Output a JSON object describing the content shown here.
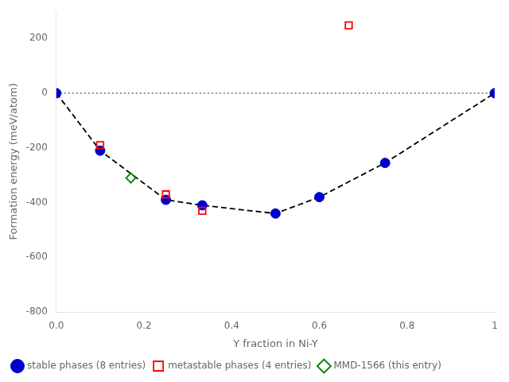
{
  "chart_data": {
    "type": "scatter",
    "x_label": "Y fraction in Ni-Y",
    "y_label": "Formation energy (meV/atom)",
    "xlim": [
      0.0,
      1.0
    ],
    "ylim": [
      -800,
      300
    ],
    "xticks": [
      {
        "value": 0.0,
        "label": "0.0"
      },
      0.2,
      0.4,
      0.6,
      0.8,
      1
    ],
    "yticks": [
      -800,
      -600,
      -400,
      -200,
      0,
      200
    ],
    "grid": false,
    "legend": "lower left",
    "series": [
      {
        "type": "line",
        "line_style": "dotted",
        "color": "gray",
        "x": [
          0.0,
          1.0
        ],
        "values": [
          0,
          0
        ]
      },
      {
        "type": "line",
        "line_style": "dashed",
        "color": "black",
        "x": [
          0.0,
          0.1,
          0.25,
          0.333,
          0.5,
          0.6,
          0.75,
          1.0
        ],
        "values": [
          0,
          -210,
          -390,
          -410,
          -440,
          -380,
          -255,
          0
        ]
      },
      {
        "name": "stable phases (8 entries)",
        "type": "scatter",
        "marker": "circle",
        "color": "#0000cc",
        "x": [
          0.0,
          0.1,
          0.25,
          0.333,
          0.5,
          0.6,
          0.75,
          1.0
        ],
        "values": [
          0,
          -210,
          -390,
          -410,
          -440,
          -380,
          -255,
          0
        ]
      },
      {
        "name": "metastable phases (4 entries)",
        "type": "scatter",
        "marker": "square_open",
        "color": "red",
        "x": [
          0.1,
          0.25,
          0.333,
          0.667
        ],
        "values": [
          -190,
          -370,
          -430,
          248
        ]
      },
      {
        "name": "MMD-1566 (this entry)",
        "type": "scatter",
        "marker": "diamond_open",
        "color": "green",
        "x": [
          0.17
        ],
        "values": [
          -310
        ]
      }
    ]
  }
}
